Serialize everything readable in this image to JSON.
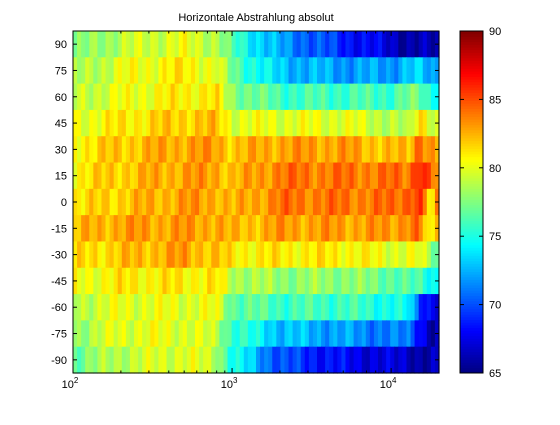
{
  "chart_data": {
    "type": "heatmap",
    "title": "Horizontale Abstrahlung absolut",
    "xlabel": "",
    "ylabel": "",
    "x_scale": "log",
    "xlim": [
      100,
      20000
    ],
    "x_ticks": [
      100,
      1000,
      10000
    ],
    "x_tick_labels": [
      {
        "base": "10",
        "exp": "2"
      },
      {
        "base": "10",
        "exp": "3"
      },
      {
        "base": "10",
        "exp": "4"
      }
    ],
    "y_ticks": [
      90,
      75,
      60,
      45,
      30,
      15,
      0,
      -15,
      -30,
      -45,
      -60,
      -75,
      -90
    ],
    "y_tick_labels": [
      "90",
      "75",
      "60",
      "45",
      "30",
      "15",
      "0",
      "-15",
      "-30",
      "-45",
      "-60",
      "-75",
      "-90"
    ],
    "ylim": [
      -97.5,
      97.5
    ],
    "rows_angles": [
      90,
      75,
      60,
      45,
      30,
      15,
      0,
      -15,
      -30,
      -45,
      -60,
      -75,
      -90
    ],
    "freq_knots": [
      100,
      200,
      500,
      800,
      1000,
      2000,
      5000,
      10000,
      13000,
      15000,
      18000,
      20000
    ],
    "levels_db": [
      [
        77,
        79,
        80,
        79,
        76,
        72,
        69,
        67,
        66,
        66,
        66,
        66
      ],
      [
        78,
        80,
        81,
        80,
        77,
        73,
        72,
        72,
        73,
        73,
        72,
        72
      ],
      [
        79,
        80,
        81,
        81,
        78,
        76,
        76,
        76,
        77,
        77,
        75,
        76
      ],
      [
        80,
        81,
        82,
        82,
        80,
        80,
        80,
        79,
        78,
        82,
        80,
        79
      ],
      [
        81,
        82,
        83,
        83,
        82,
        83,
        83,
        82,
        82,
        85,
        83,
        82
      ],
      [
        81,
        82,
        83,
        83,
        82,
        84,
        84,
        84,
        84,
        87,
        84,
        83
      ],
      [
        81,
        82,
        83,
        83,
        82,
        84,
        84,
        84,
        85,
        86,
        80,
        84
      ],
      [
        82,
        83,
        83,
        83,
        82,
        83,
        83,
        83,
        84,
        84,
        79,
        85
      ],
      [
        81,
        82,
        83,
        82,
        81,
        81,
        81,
        80,
        80,
        80,
        78,
        77
      ],
      [
        80,
        81,
        81,
        81,
        79,
        78,
        78,
        77,
        76,
        76,
        75,
        74
      ],
      [
        79,
        80,
        80,
        80,
        77,
        76,
        76,
        75,
        74,
        70,
        68,
        68
      ],
      [
        78,
        80,
        80,
        79,
        76,
        73,
        72,
        71,
        71,
        69,
        66,
        66
      ],
      [
        77,
        79,
        80,
        79,
        75,
        70,
        68,
        67,
        67,
        66,
        66,
        66
      ]
    ],
    "colorbar": {
      "min": 65,
      "max": 90,
      "ticks": [
        90,
        85,
        80,
        75,
        70,
        65
      ],
      "tick_labels": [
        "90",
        "85",
        "80",
        "75",
        "70",
        "65"
      ],
      "colormap": "jet"
    },
    "grid": false,
    "legend": "none"
  }
}
